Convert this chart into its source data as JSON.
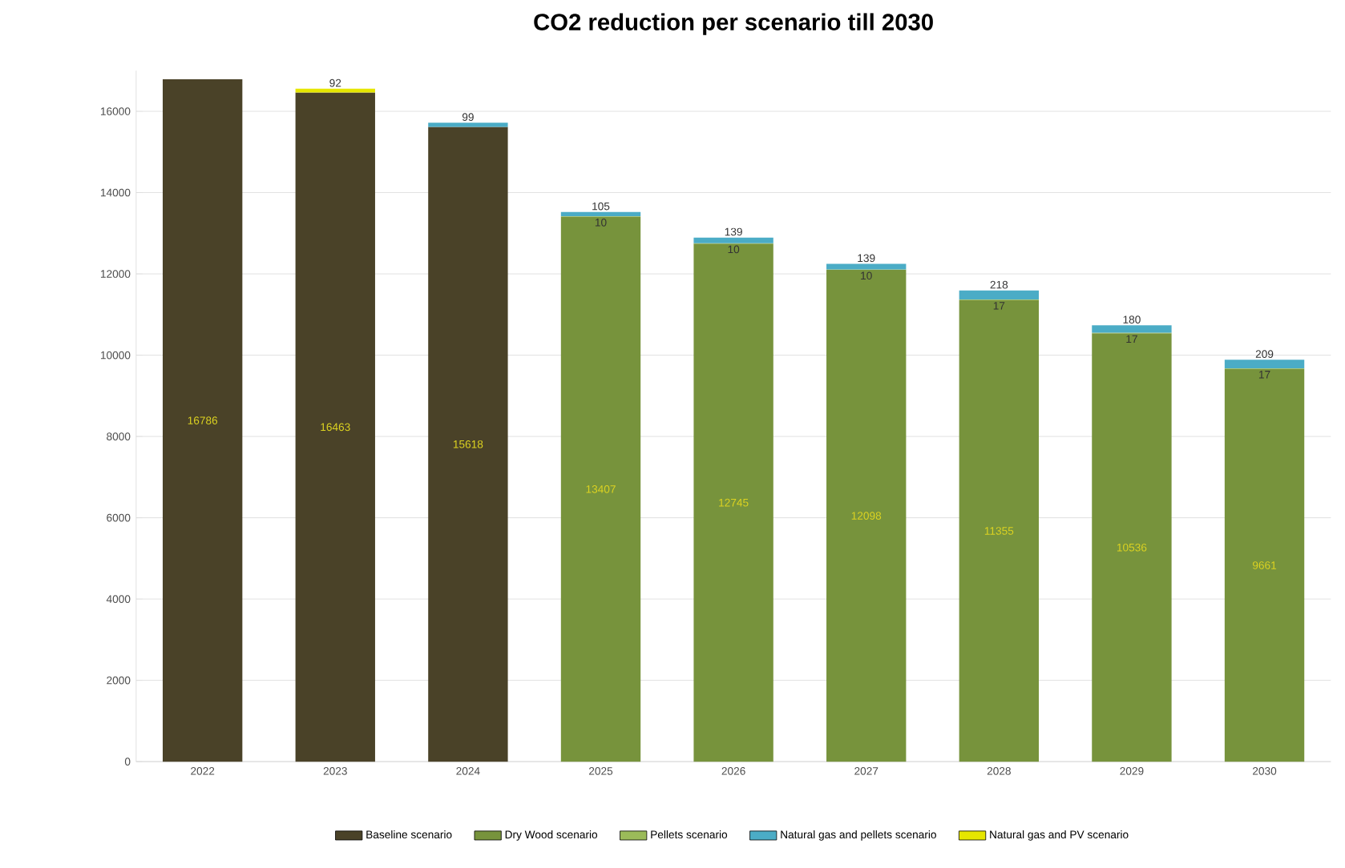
{
  "chart_data": {
    "type": "bar",
    "stacked": true,
    "title": "CO2 reduction per scenario till 2030",
    "categories": [
      "2022",
      "2023",
      "2024",
      "2025",
      "2026",
      "2027",
      "2028",
      "2029",
      "2030"
    ],
    "series": [
      {
        "name": "Baseline scenario",
        "color": "#4a4228",
        "values": [
          16786,
          16463,
          15618,
          null,
          null,
          null,
          null,
          null,
          null
        ],
        "value_labels": [
          "16786",
          "16463",
          "15618",
          null,
          null,
          null,
          null,
          null,
          null
        ]
      },
      {
        "name": "Dry Wood scenario",
        "color": "#77933c",
        "values": [
          null,
          null,
          null,
          13407,
          12745,
          12098,
          11355,
          10536,
          9661
        ],
        "value_labels": [
          null,
          null,
          null,
          "13407",
          "12745",
          "12098",
          "11355",
          "10536",
          "9661"
        ]
      },
      {
        "name": "Pellets scenario",
        "color": "#9bbb59",
        "values": [
          null,
          null,
          null,
          10,
          10,
          10,
          17,
          17,
          17
        ],
        "value_labels": [
          null,
          null,
          null,
          "10",
          "10",
          "10",
          "17",
          "17",
          "17"
        ]
      },
      {
        "name": "Natural gas and pellets scenario",
        "color": "#4bacc6",
        "values": [
          null,
          null,
          99,
          105,
          139,
          139,
          218,
          180,
          209
        ],
        "value_labels": [
          null,
          null,
          "99",
          "105",
          "139",
          "139",
          "218",
          "180",
          "209"
        ]
      },
      {
        "name": "Natural gas and PV scenario",
        "color": "#e6e600",
        "values": [
          null,
          92,
          null,
          null,
          null,
          null,
          null,
          null,
          null
        ],
        "value_labels": [
          null,
          "92",
          null,
          null,
          null,
          null,
          null,
          null,
          null
        ]
      }
    ],
    "ylim": [
      0,
      17000
    ],
    "yticks": [
      0,
      2000,
      4000,
      6000,
      8000,
      10000,
      12000,
      14000,
      16000
    ],
    "grid": "y",
    "legend": "bottom"
  }
}
